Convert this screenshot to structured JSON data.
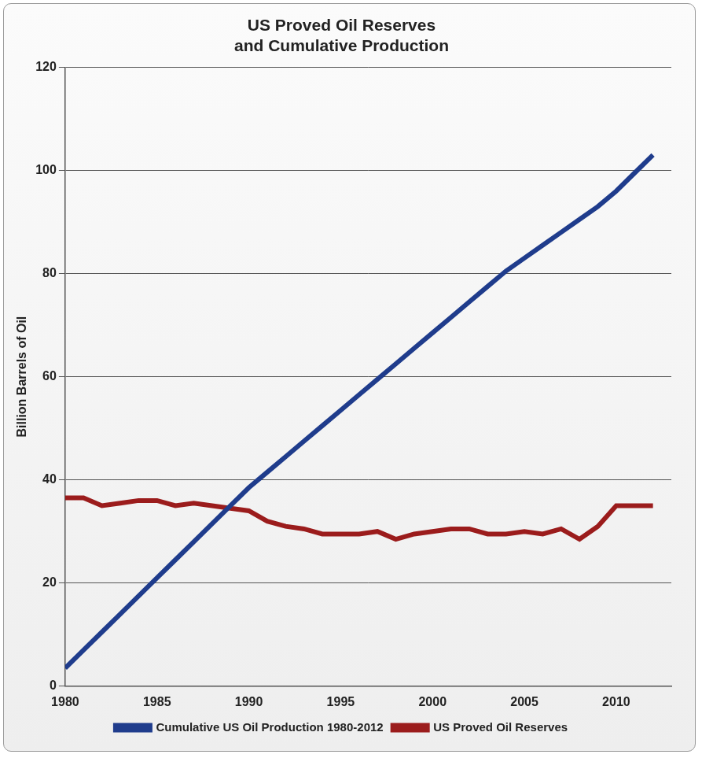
{
  "chart_data": {
    "type": "line",
    "title": [
      "US Proved Oil Reserves",
      "and Cumulative Production"
    ],
    "y_label": "Billion Barrels of Oil",
    "x": [
      1980,
      1981,
      1982,
      1983,
      1984,
      1985,
      1986,
      1987,
      1988,
      1989,
      1990,
      1991,
      1992,
      1993,
      1994,
      1995,
      1996,
      1997,
      1998,
      1999,
      2000,
      2001,
      2002,
      2003,
      2004,
      2005,
      2006,
      2007,
      2008,
      2009,
      2010,
      2011,
      2012
    ],
    "series": [
      {
        "name": "Cumulative US Oil Production 1980-2012",
        "color": "#1f3c8c",
        "values": [
          3.5,
          7,
          10.5,
          14,
          17.5,
          21,
          24.5,
          28,
          31.5,
          35,
          38.5,
          41.5,
          44.5,
          47.5,
          50.5,
          53.5,
          56.5,
          59.5,
          62.5,
          65.5,
          68.5,
          71.5,
          74.5,
          77.5,
          80.5,
          83,
          85.5,
          88,
          90.5,
          93,
          96,
          99.5,
          103
        ]
      },
      {
        "name": "US Proved Oil Reserves",
        "color": "#9b1c1c",
        "values": [
          36.5,
          36.5,
          35,
          35.5,
          36,
          36,
          35,
          35.5,
          35,
          34.5,
          34,
          32,
          31,
          30.5,
          29.5,
          29.5,
          29.5,
          30,
          28.5,
          29.5,
          30,
          30.5,
          30.5,
          29.5,
          29.5,
          30,
          29.5,
          30.5,
          28.5,
          31,
          35,
          35,
          35
        ]
      }
    ],
    "xlim": [
      1980,
      2013
    ],
    "xticks": [
      1980,
      1985,
      1990,
      1995,
      2000,
      2005,
      2010
    ],
    "ylim": [
      0,
      120
    ],
    "yticks": [
      0,
      20,
      40,
      60,
      80,
      100,
      120
    ],
    "grid": true,
    "legend": "bottom"
  }
}
